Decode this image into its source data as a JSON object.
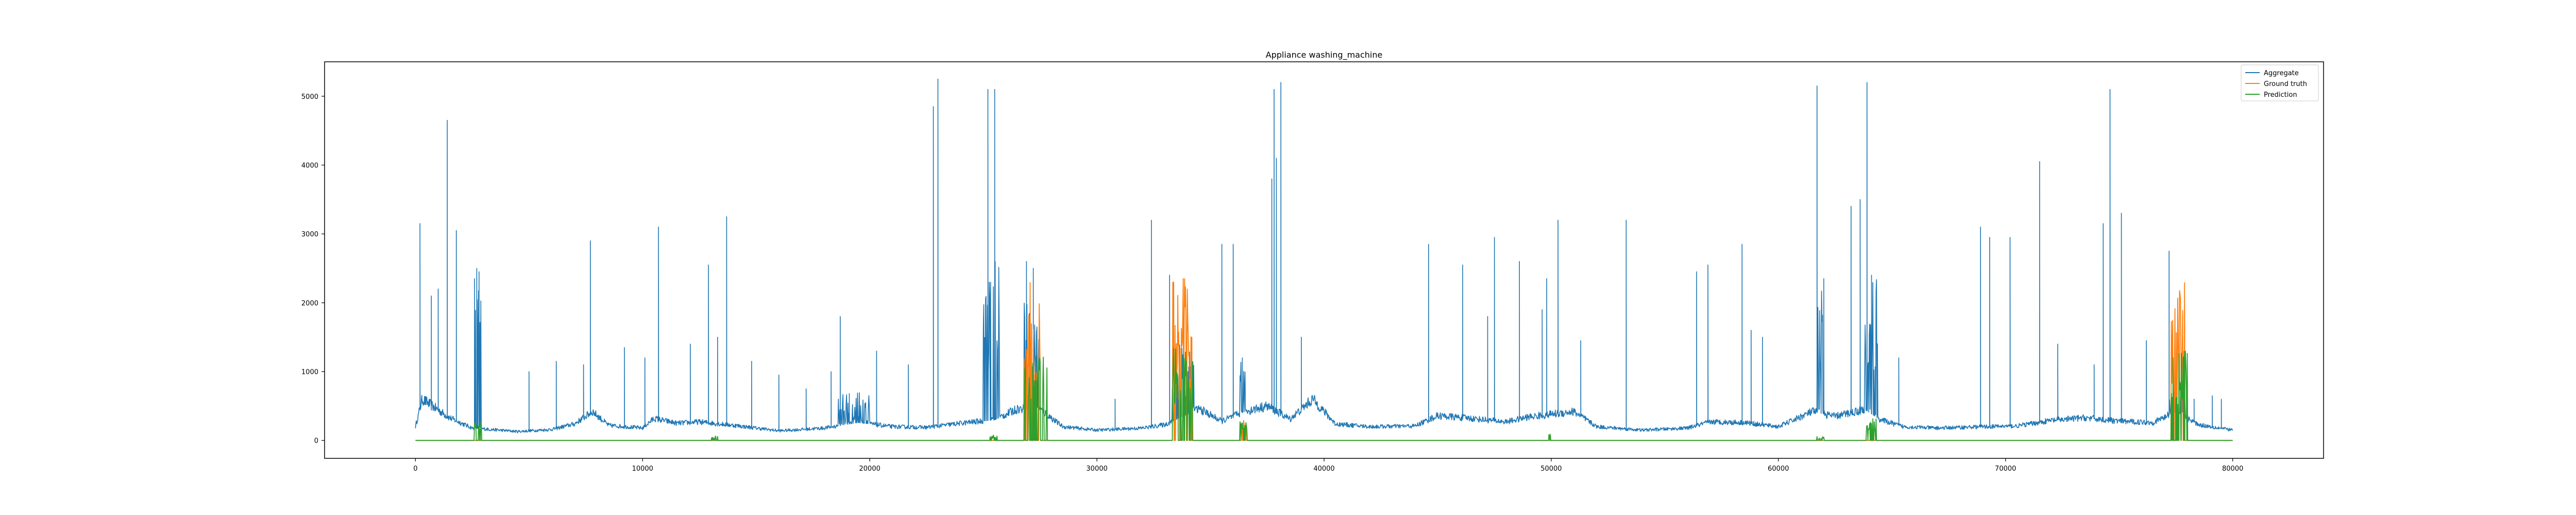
{
  "chart_data": {
    "type": "line",
    "title": "Appliance washing_machine",
    "xlabel": "",
    "ylabel": "",
    "xlim": [
      -4000,
      84000
    ],
    "ylim": [
      -260,
      5500
    ],
    "xticks": [
      0,
      10000,
      20000,
      30000,
      40000,
      50000,
      60000,
      70000,
      80000
    ],
    "yticks": [
      0,
      1000,
      2000,
      3000,
      4000,
      5000
    ],
    "grid": false,
    "legend": {
      "placement": "top-right"
    },
    "series": [
      {
        "name": "Aggregate",
        "color": "#1f77b4",
        "baseline": [
          [
            0,
            200
          ],
          [
            300,
            600
          ],
          [
            1500,
            330
          ],
          [
            2500,
            180
          ],
          [
            4500,
            130
          ],
          [
            6000,
            160
          ],
          [
            7000,
            240
          ],
          [
            7800,
            420
          ],
          [
            8500,
            220
          ],
          [
            10000,
            180
          ],
          [
            10500,
            320
          ],
          [
            11500,
            250
          ],
          [
            12500,
            270
          ],
          [
            14000,
            220
          ],
          [
            16000,
            140
          ],
          [
            18000,
            180
          ],
          [
            19500,
            260
          ],
          [
            21000,
            200
          ],
          [
            22500,
            190
          ],
          [
            24000,
            250
          ],
          [
            25500,
            300
          ],
          [
            26500,
            460
          ],
          [
            27500,
            450
          ],
          [
            28500,
            200
          ],
          [
            30000,
            150
          ],
          [
            32000,
            180
          ],
          [
            33000,
            230
          ],
          [
            34500,
            460
          ],
          [
            35500,
            280
          ],
          [
            36500,
            420
          ],
          [
            37500,
            500
          ],
          [
            38500,
            310
          ],
          [
            39500,
            600
          ],
          [
            40500,
            240
          ],
          [
            42000,
            200
          ],
          [
            44000,
            210
          ],
          [
            45000,
            360
          ],
          [
            46500,
            320
          ],
          [
            48000,
            270
          ],
          [
            49000,
            340
          ],
          [
            50000,
            380
          ],
          [
            51000,
            420
          ],
          [
            52000,
            200
          ],
          [
            54000,
            150
          ],
          [
            56000,
            180
          ],
          [
            57000,
            270
          ],
          [
            58500,
            260
          ],
          [
            60000,
            200
          ],
          [
            61500,
            420
          ],
          [
            62500,
            350
          ],
          [
            63800,
            450
          ],
          [
            64500,
            300
          ],
          [
            65500,
            200
          ],
          [
            67000,
            180
          ],
          [
            69000,
            200
          ],
          [
            70500,
            210
          ],
          [
            72000,
            290
          ],
          [
            73500,
            330
          ],
          [
            75000,
            280
          ],
          [
            76500,
            260
          ],
          [
            77500,
            420
          ],
          [
            78500,
            230
          ],
          [
            80000,
            150
          ]
        ],
        "spikes": [
          [
            200,
            3150
          ],
          [
            700,
            2100
          ],
          [
            1000,
            2200
          ],
          [
            1400,
            4650
          ],
          [
            1800,
            3050
          ],
          [
            2600,
            2350
          ],
          [
            2700,
            2500
          ],
          [
            2800,
            2450
          ],
          [
            5000,
            1000
          ],
          [
            6200,
            1150
          ],
          [
            7400,
            1100
          ],
          [
            7700,
            2900
          ],
          [
            9200,
            1350
          ],
          [
            10100,
            1200
          ],
          [
            10700,
            3100
          ],
          [
            12100,
            1400
          ],
          [
            12900,
            2550
          ],
          [
            13300,
            1500
          ],
          [
            13700,
            3250
          ],
          [
            14800,
            1150
          ],
          [
            16000,
            950
          ],
          [
            17200,
            750
          ],
          [
            18300,
            1000
          ],
          [
            18700,
            1800
          ],
          [
            19100,
            680
          ],
          [
            20300,
            1300
          ],
          [
            21700,
            1100
          ],
          [
            22800,
            4850
          ],
          [
            23000,
            5250
          ],
          [
            25200,
            5100
          ],
          [
            25500,
            5100
          ],
          [
            26900,
            2600
          ],
          [
            27200,
            2500
          ],
          [
            30800,
            600
          ],
          [
            32400,
            3200
          ],
          [
            33200,
            2400
          ],
          [
            33500,
            1200
          ],
          [
            34000,
            1000
          ],
          [
            35500,
            2850
          ],
          [
            36000,
            2850
          ],
          [
            36400,
            1200
          ],
          [
            37700,
            3800
          ],
          [
            37800,
            5100
          ],
          [
            37900,
            4100
          ],
          [
            38100,
            5200
          ],
          [
            39000,
            1500
          ],
          [
            44600,
            2850
          ],
          [
            46100,
            2550
          ],
          [
            47200,
            1800
          ],
          [
            47500,
            2950
          ],
          [
            48600,
            2600
          ],
          [
            49600,
            1900
          ],
          [
            49800,
            2350
          ],
          [
            50300,
            3200
          ],
          [
            51300,
            1450
          ],
          [
            53300,
            3200
          ],
          [
            56400,
            2450
          ],
          [
            56900,
            2550
          ],
          [
            58400,
            2850
          ],
          [
            58800,
            1600
          ],
          [
            59300,
            1500
          ],
          [
            61700,
            5150
          ],
          [
            62000,
            2350
          ],
          [
            63200,
            3400
          ],
          [
            63600,
            3500
          ],
          [
            63900,
            5200
          ],
          [
            64100,
            2400
          ],
          [
            65300,
            1200
          ],
          [
            68900,
            3100
          ],
          [
            69300,
            2950
          ],
          [
            70200,
            2950
          ],
          [
            71500,
            4050
          ],
          [
            72300,
            1400
          ],
          [
            73900,
            1100
          ],
          [
            74300,
            3150
          ],
          [
            74600,
            5100
          ],
          [
            75100,
            3300
          ],
          [
            76200,
            1450
          ],
          [
            77200,
            2750
          ],
          [
            78300,
            600
          ],
          [
            79100,
            650
          ],
          [
            79500,
            600
          ]
        ],
        "bursts": [
          [
            2600,
            2900,
            2450
          ],
          [
            18600,
            20000,
            700
          ],
          [
            25000,
            25700,
            2700
          ],
          [
            26800,
            27500,
            2100
          ],
          [
            33300,
            34300,
            1500
          ],
          [
            36300,
            36600,
            1150
          ],
          [
            61700,
            62000,
            2400
          ],
          [
            63800,
            64400,
            2350
          ],
          [
            77200,
            77900,
            950
          ]
        ]
      },
      {
        "name": "Ground truth",
        "color": "#ff7f0e",
        "bursts": [
          [
            26800,
            27500,
            2300
          ],
          [
            33300,
            34200,
            2400
          ],
          [
            36300,
            36600,
            300
          ],
          [
            77200,
            77900,
            2350
          ]
        ]
      },
      {
        "name": "Prediction",
        "color": "#2ca02c",
        "bursts": [
          [
            2600,
            2900,
            280
          ],
          [
            13000,
            13300,
            70
          ],
          [
            25300,
            25600,
            80
          ],
          [
            26800,
            27800,
            1250
          ],
          [
            33300,
            34300,
            1400
          ],
          [
            36300,
            36700,
            320
          ],
          [
            49800,
            50000,
            100
          ],
          [
            61700,
            62000,
            60
          ],
          [
            63800,
            64300,
            320
          ],
          [
            77200,
            78000,
            1300
          ]
        ]
      }
    ]
  }
}
